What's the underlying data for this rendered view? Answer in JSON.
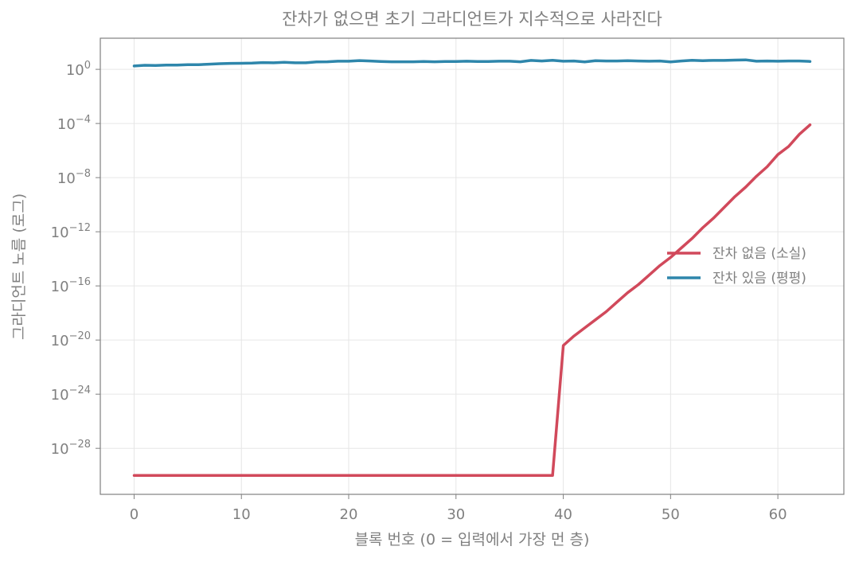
{
  "chart_data": {
    "type": "line",
    "title": "잔차가 없으면 초기 그라디언트가 지수적으로 사라진다",
    "xlabel": "블록 번호 (0 = 입력에서 가장 먼 층)",
    "ylabel": "그라디언트 노름 (로그)",
    "xlim": [
      -3.15,
      66.15
    ],
    "xticks": [
      0,
      10,
      20,
      30,
      40,
      50,
      60
    ],
    "yscale": "log",
    "ylim_exponent": [
      -31.4,
      2.3
    ],
    "yticks_exponent": [
      0,
      -4,
      -8,
      -12,
      -16,
      -20,
      -24,
      -28
    ],
    "ytick_base": "10",
    "grid": true,
    "legend_position": "center-right",
    "x": [
      0,
      1,
      2,
      3,
      4,
      5,
      6,
      7,
      8,
      9,
      10,
      11,
      12,
      13,
      14,
      15,
      16,
      17,
      18,
      19,
      20,
      21,
      22,
      23,
      24,
      25,
      26,
      27,
      28,
      29,
      30,
      31,
      32,
      33,
      34,
      35,
      36,
      37,
      38,
      39,
      40,
      41,
      42,
      43,
      44,
      45,
      46,
      47,
      48,
      49,
      50,
      51,
      52,
      53,
      54,
      55,
      56,
      57,
      58,
      59,
      60,
      61,
      62,
      63
    ],
    "series": [
      {
        "name": "잔차 없음 (소실)",
        "color": "#d1495b",
        "log10_values": [
          -30,
          -30,
          -30,
          -30,
          -30,
          -30,
          -30,
          -30,
          -30,
          -30,
          -30,
          -30,
          -30,
          -30,
          -30,
          -30,
          -30,
          -30,
          -30,
          -30,
          -30,
          -30,
          -30,
          -30,
          -30,
          -30,
          -30,
          -30,
          -30,
          -30,
          -30,
          -30,
          -30,
          -30,
          -30,
          -30,
          -30,
          -30,
          -30,
          -30,
          -20.4,
          -19.7,
          -19.1,
          -18.5,
          -17.9,
          -17.2,
          -16.5,
          -15.9,
          -15.2,
          -14.5,
          -13.9,
          -13.2,
          -12.5,
          -11.7,
          -11,
          -10.2,
          -9.4,
          -8.7,
          -7.9,
          -7.2,
          -6.3,
          -5.7,
          -4.8,
          -4.1
        ],
        "values_note": ""
      },
      {
        "name": "잔차 있음 (평평)",
        "color": "#2e86ab",
        "log10_values": [
          0.25,
          0.3,
          0.28,
          0.32,
          0.32,
          0.35,
          0.35,
          0.38,
          0.42,
          0.44,
          0.45,
          0.46,
          0.5,
          0.48,
          0.52,
          0.48,
          0.48,
          0.55,
          0.56,
          0.6,
          0.6,
          0.65,
          0.62,
          0.58,
          0.56,
          0.56,
          0.56,
          0.58,
          0.56,
          0.58,
          0.58,
          0.6,
          0.58,
          0.58,
          0.6,
          0.6,
          0.56,
          0.66,
          0.62,
          0.67,
          0.6,
          0.62,
          0.55,
          0.64,
          0.62,
          0.62,
          0.64,
          0.62,
          0.6,
          0.62,
          0.55,
          0.62,
          0.67,
          0.64,
          0.66,
          0.66,
          0.68,
          0.7,
          0.6,
          0.62,
          0.6,
          0.62,
          0.62,
          0.58
        ]
      }
    ]
  }
}
